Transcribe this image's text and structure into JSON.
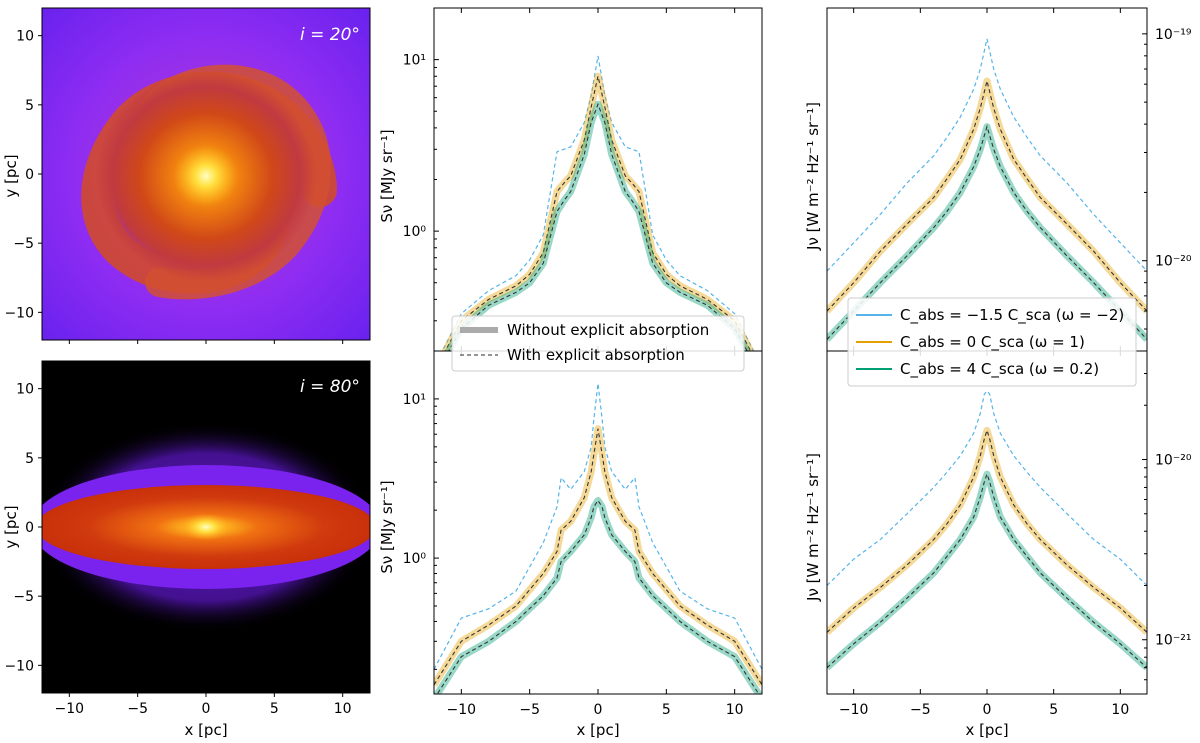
{
  "chart_data": [
    {
      "type": "heatmap",
      "panel": "image-top",
      "annotation": "i = 20°",
      "ylabel": "y [pc]",
      "xlim": [
        -12,
        12
      ],
      "ylim": [
        -12,
        12
      ],
      "yticks": [
        "10",
        "5",
        "0",
        "−5",
        "−10"
      ]
    },
    {
      "type": "heatmap",
      "panel": "image-bottom",
      "annotation": "i = 80°",
      "xlabel": "x [pc]",
      "ylabel": "y [pc]",
      "xlim": [
        -12,
        12
      ],
      "ylim": [
        -12,
        12
      ],
      "xticks": [
        "−10",
        "−5",
        "0",
        "5",
        "10"
      ],
      "yticks": [
        "10",
        "5",
        "0",
        "−5",
        "−10"
      ]
    },
    {
      "type": "line",
      "panel": "S-top",
      "ylabel": "Sν [MJy sr⁻¹]",
      "yscale": "log",
      "xlim": [
        -12,
        12
      ],
      "ylim": [
        0.2,
        20
      ],
      "yticks": [
        "10¹",
        "10⁰"
      ],
      "x": [
        -12,
        -10,
        -8,
        -6,
        -5,
        -4,
        -3,
        -2.5,
        -2,
        -1,
        -0.5,
        0,
        0.5,
        1,
        2,
        2.5,
        3,
        4,
        5,
        6,
        8,
        10,
        12
      ],
      "series": [
        {
          "name": "C_abs = −1.5 C_sca (ω = −2)",
          "color": "#56B4E9",
          "dashed": true,
          "values": [
            0.16,
            0.33,
            0.45,
            0.55,
            0.68,
            0.95,
            2.9,
            3.0,
            3.1,
            4.3,
            6.2,
            10.5,
            6.2,
            4.3,
            3.1,
            3.0,
            2.9,
            0.95,
            0.68,
            0.55,
            0.45,
            0.33,
            0.16
          ]
        },
        {
          "name": "C_abs = 0 C_sca (ω = 1)",
          "color": "#E69F00",
          "values": [
            0.15,
            0.3,
            0.4,
            0.48,
            0.56,
            0.75,
            1.7,
            1.9,
            2.1,
            3.4,
            5.3,
            8.0,
            5.3,
            3.4,
            2.1,
            1.9,
            1.7,
            0.75,
            0.56,
            0.48,
            0.4,
            0.3,
            0.15
          ]
        },
        {
          "name": "C_abs = 4 C_sca (ω = 0.2)",
          "color": "#009E73",
          "values": [
            0.14,
            0.27,
            0.37,
            0.44,
            0.5,
            0.65,
            1.3,
            1.5,
            1.7,
            2.8,
            4.3,
            5.5,
            4.3,
            2.8,
            1.7,
            1.5,
            1.3,
            0.65,
            0.5,
            0.44,
            0.37,
            0.27,
            0.14
          ]
        }
      ]
    },
    {
      "type": "line",
      "panel": "S-bottom",
      "xlabel": "x [pc]",
      "ylabel": "Sν [MJy sr⁻¹]",
      "yscale": "log",
      "xlim": [
        -12,
        12
      ],
      "ylim": [
        0.14,
        20
      ],
      "yticks": [
        "10¹",
        "10⁰"
      ],
      "xticks": [
        "−10",
        "−5",
        "0",
        "5",
        "10"
      ],
      "x": [
        -12,
        -10,
        -8,
        -6,
        -4,
        -3,
        -2.7,
        -2,
        -1,
        -0.5,
        -0.3,
        0,
        0.3,
        0.5,
        1,
        2,
        2.7,
        3,
        4,
        6,
        8,
        10,
        12
      ],
      "series": [
        {
          "name": "C_abs = −1.5 C_sca (ω = −2)",
          "color": "#56B4E9",
          "dashed": true,
          "values": [
            0.2,
            0.42,
            0.48,
            0.62,
            1.25,
            2.1,
            3.2,
            2.7,
            3.5,
            5.0,
            7.5,
            12.5,
            7.5,
            5.0,
            3.5,
            2.7,
            3.2,
            2.1,
            1.25,
            0.62,
            0.48,
            0.42,
            0.2
          ]
        },
        {
          "name": "C_abs = 0 C_sca (ω = 1)",
          "color": "#E69F00",
          "values": [
            0.16,
            0.3,
            0.38,
            0.5,
            0.8,
            1.1,
            1.5,
            1.7,
            2.4,
            3.5,
            4.5,
            6.5,
            4.5,
            3.5,
            2.4,
            1.7,
            1.5,
            1.1,
            0.8,
            0.5,
            0.38,
            0.3,
            0.16
          ]
        },
        {
          "name": "C_abs = 4 C_sca (ω = 0.2)",
          "color": "#009E73",
          "values": [
            0.13,
            0.24,
            0.3,
            0.4,
            0.58,
            0.75,
            0.95,
            1.1,
            1.4,
            1.8,
            2.1,
            2.3,
            2.1,
            1.8,
            1.4,
            1.1,
            0.95,
            0.75,
            0.58,
            0.4,
            0.3,
            0.24,
            0.13
          ]
        }
      ]
    },
    {
      "type": "line",
      "panel": "J-top",
      "ylabel": "Jν [W m⁻² Hz⁻¹ sr⁻¹]",
      "yscale": "log",
      "xlim": [
        -12,
        12
      ],
      "ylim": [
        4e-21,
        1.3e-19
      ],
      "yticks": [
        "10⁻¹⁹",
        "10⁻²⁰"
      ],
      "x": [
        -12,
        -10,
        -8,
        -6,
        -4,
        -3,
        -2,
        -1,
        -0.5,
        0,
        0.5,
        1,
        2,
        3,
        4,
        6,
        8,
        10,
        12
      ],
      "series": [
        {
          "name": "C_abs = −1.5 C_sca (ω = −2)",
          "color": "#56B4E9",
          "dashed": true,
          "values": [
            9e-21,
            1.2e-20,
            1.6e-20,
            2.2e-20,
            2.9e-20,
            3.5e-20,
            4.3e-20,
            5.7e-20,
            7e-20,
            9.5e-20,
            7e-20,
            5.7e-20,
            4.3e-20,
            3.5e-20,
            2.9e-20,
            2.2e-20,
            1.6e-20,
            1.2e-20,
            9e-21
          ]
        },
        {
          "name": "C_abs = 0 C_sca (ω = 1)",
          "color": "#E69F00",
          "values": [
            6e-21,
            8e-21,
            1.1e-20,
            1.45e-20,
            1.9e-20,
            2.3e-20,
            2.8e-20,
            3.8e-20,
            4.7e-20,
            6.2e-20,
            4.7e-20,
            3.8e-20,
            2.8e-20,
            2.3e-20,
            1.9e-20,
            1.45e-20,
            1.1e-20,
            8e-21,
            6e-21
          ]
        },
        {
          "name": "C_abs = 4 C_sca (ω = 0.2)",
          "color": "#009E73",
          "values": [
            4.5e-21,
            6e-21,
            8e-21,
            1.05e-20,
            1.4e-20,
            1.65e-20,
            2e-20,
            2.6e-20,
            3.1e-20,
            3.9e-20,
            3.1e-20,
            2.6e-20,
            2e-20,
            1.65e-20,
            1.4e-20,
            1.05e-20,
            8e-21,
            6e-21,
            4.5e-21
          ]
        }
      ]
    },
    {
      "type": "line",
      "panel": "J-bottom",
      "xlabel": "x [pc]",
      "ylabel": "Jν [W m⁻² Hz⁻¹ sr⁻¹]",
      "yscale": "log",
      "xlim": [
        -12,
        12
      ],
      "ylim": [
        5e-22,
        4e-20
      ],
      "yticks": [
        "10⁻²⁰",
        "10⁻²¹"
      ],
      "xticks": [
        "−10",
        "−5",
        "0",
        "5",
        "10"
      ],
      "x": [
        -12,
        -10,
        -8,
        -6,
        -4,
        -3,
        -2,
        -1,
        -0.5,
        -0.2,
        0,
        0.2,
        0.5,
        1,
        2,
        3,
        4,
        6,
        8,
        10,
        12
      ],
      "series": [
        {
          "name": "C_abs = −1.5 C_sca (ω = −2)",
          "color": "#56B4E9",
          "dashed": true,
          "values": [
            2e-21,
            2.8e-21,
            3.6e-21,
            5e-21,
            7e-21,
            8.5e-21,
            1.05e-20,
            1.4e-20,
            1.8e-20,
            2.3e-20,
            2.4e-20,
            2.3e-20,
            1.8e-20,
            1.4e-20,
            1.05e-20,
            8.5e-21,
            7e-21,
            5e-21,
            3.6e-21,
            2.8e-21,
            2e-21
          ]
        },
        {
          "name": "C_abs = 0 C_sca (ω = 1)",
          "color": "#E69F00",
          "values": [
            1.1e-21,
            1.5e-21,
            1.95e-21,
            2.6e-21,
            3.6e-21,
            4.4e-21,
            5.6e-21,
            8e-21,
            1.05e-20,
            1.3e-20,
            1.45e-20,
            1.3e-20,
            1.05e-20,
            8e-21,
            5.6e-21,
            4.4e-21,
            3.6e-21,
            2.6e-21,
            1.95e-21,
            1.5e-21,
            1.1e-21
          ]
        },
        {
          "name": "C_abs = 4 C_sca (ω = 0.2)",
          "color": "#009E73",
          "values": [
            7e-22,
            9.5e-22,
            1.25e-21,
            1.7e-21,
            2.35e-21,
            2.9e-21,
            3.6e-21,
            4.8e-21,
            6.2e-21,
            7.5e-21,
            8.3e-21,
            7.5e-21,
            6.2e-21,
            4.8e-21,
            3.6e-21,
            2.9e-21,
            2.35e-21,
            1.7e-21,
            1.25e-21,
            9.5e-22,
            7e-22
          ]
        }
      ]
    }
  ],
  "legend_style": {
    "entries": [
      "Without explicit absorption",
      "With explicit absorption"
    ]
  },
  "legend_models": {
    "entries": [
      "C_abs = −1.5 C_sca (ω = −2)",
      "C_abs = 0 C_sca (ω = 1)",
      "C_abs = 4 C_sca (ω = 0.2)"
    ],
    "colors": [
      "#56B4E9",
      "#E69F00",
      "#009E73"
    ]
  }
}
